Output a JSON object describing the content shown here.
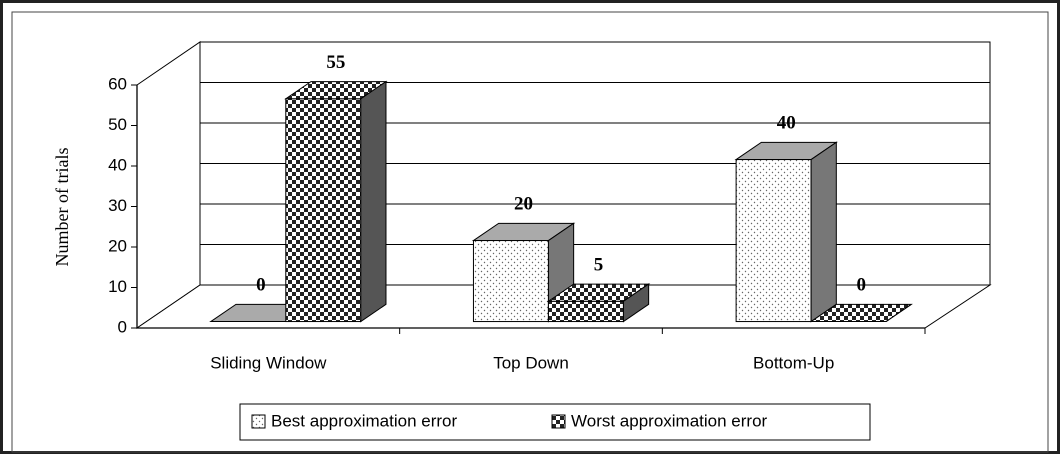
{
  "chart_data": {
    "type": "bar3d",
    "y_label": "Number of trials",
    "categories": [
      "Sliding Window",
      "Top Down",
      "Bottom-Up"
    ],
    "series": [
      {
        "name": "Best approximation error",
        "color": "#ffffff",
        "values": [
          0,
          20,
          40
        ]
      },
      {
        "name": "Worst approximation error",
        "color": "#222222",
        "values": [
          55,
          5,
          0
        ]
      }
    ],
    "ylim": [
      0,
      60
    ],
    "yticks": [
      0,
      10,
      20,
      30,
      40,
      50,
      60
    ],
    "grid": true,
    "legend": "bottom"
  }
}
